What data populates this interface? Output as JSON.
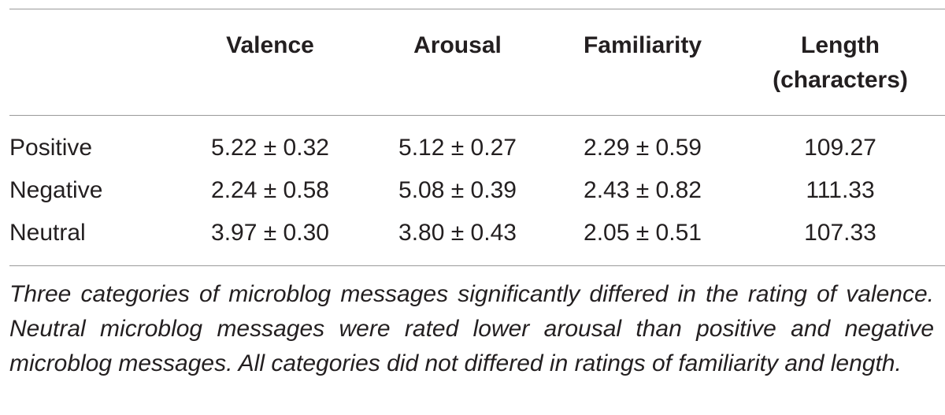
{
  "table": {
    "headers": [
      {
        "lines": [
          ""
        ]
      },
      {
        "lines": [
          "Valence"
        ]
      },
      {
        "lines": [
          "Arousal"
        ]
      },
      {
        "lines": [
          "Familiarity"
        ]
      },
      {
        "lines": [
          "Length",
          "(characters)"
        ]
      }
    ],
    "rows": [
      {
        "label": "Positive",
        "valence": "5.22 ± 0.32",
        "arousal": "5.12 ± 0.27",
        "familiarity": "2.29 ± 0.59",
        "length": "109.27"
      },
      {
        "label": "Negative",
        "valence": "2.24 ± 0.58",
        "arousal": "5.08 ± 0.39",
        "familiarity": "2.43 ± 0.82",
        "length": "111.33"
      },
      {
        "label": "Neutral",
        "valence": "3.97 ± 0.30",
        "arousal": "3.80 ± 0.43",
        "familiarity": "2.05 ± 0.51",
        "length": "107.33"
      }
    ]
  },
  "footnote": "Three categories of microblog messages significantly differed in the rating of valence. Neutral microblog messages were rated lower arousal than positive and negative microblog messages. All categories did not differed in ratings of familiarity and length."
}
